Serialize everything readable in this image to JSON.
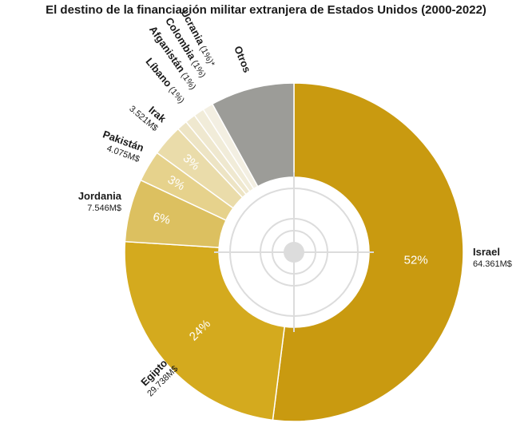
{
  "title": "El destino de la financiación militar extranjera de Estados Unidos (2000-2022)",
  "chart_data": {
    "type": "pie",
    "donut": true,
    "slices": [
      {
        "name": "Israel",
        "label_value": "64.361M$",
        "percent": 52,
        "percent_label": "52%",
        "color": "#c99a10"
      },
      {
        "name": "Egipto",
        "label_value": "29.738M$",
        "percent": 24,
        "percent_label": "24%",
        "color": "#d4aa1e"
      },
      {
        "name": "Jordania",
        "label_value": "7.546M$",
        "percent": 6,
        "percent_label": "6%",
        "color": "#dcc060"
      },
      {
        "name": "Pakistán",
        "label_value": "4.075M$",
        "percent": 3,
        "percent_label": "3%",
        "color": "#e6d28c"
      },
      {
        "name": "Irak",
        "label_value": "3.521M$",
        "percent": 3,
        "percent_label": "3%",
        "color": "#eadcaa"
      },
      {
        "name": "Líbano",
        "suffix": "(1%)",
        "percent": 1,
        "color": "#ede4c4"
      },
      {
        "name": "Afganistán",
        "suffix": "(1%)",
        "percent": 1,
        "color": "#efe8cf"
      },
      {
        "name": "Colombia",
        "suffix": "(1%)",
        "percent": 1,
        "color": "#f1ecd9"
      },
      {
        "name": "Ucrania",
        "suffix": "(1%)*",
        "percent": 1,
        "color": "#f3efe2"
      },
      {
        "name": "Otros",
        "percent": 8,
        "color": "#9c9c98"
      }
    ]
  }
}
